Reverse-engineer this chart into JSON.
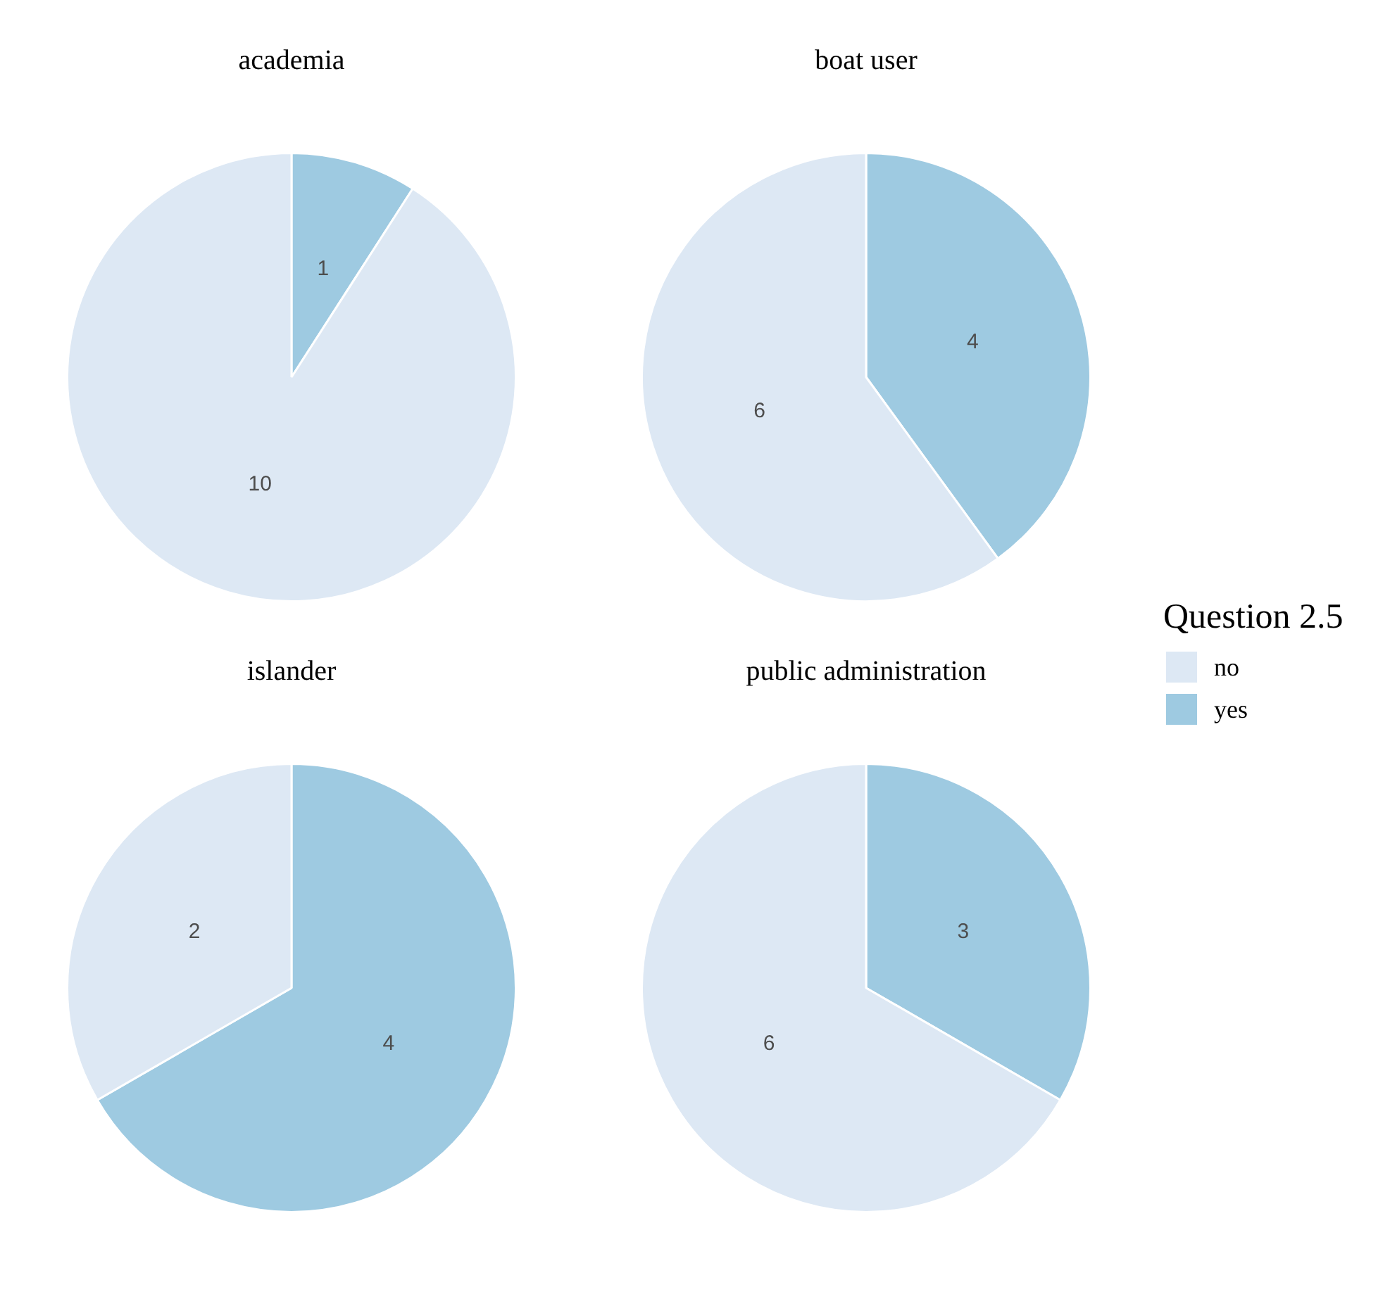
{
  "chart_data": [
    {
      "type": "pie",
      "title": "academia",
      "categories": [
        null,
        null
      ],
      "values": [
        10,
        1
      ],
      "colors": [
        "#dde8f4",
        "#9ecae1"
      ],
      "data_labels": true
    },
    {
      "type": "pie",
      "title": "boat user",
      "categories": [
        "no",
        "yes"
      ],
      "values": [
        6,
        4
      ],
      "colors": [
        "#dde8f4",
        "#9ecae1"
      ],
      "data_labels": true,
      "legend": "right",
      "legend_title": "Question 2.5"
    },
    {
      "type": "pie",
      "title": "islander",
      "categories": [
        null,
        null
      ],
      "values": [
        2,
        4
      ],
      "colors": [
        "#dde8f4",
        "#9ecae1"
      ],
      "data_labels": true
    },
    {
      "type": "pie",
      "title": "public administration",
      "categories": [
        null,
        null
      ],
      "values": [
        6,
        3
      ],
      "colors": [
        "#dde8f4",
        "#9ecae1"
      ],
      "data_labels": true
    }
  ]
}
